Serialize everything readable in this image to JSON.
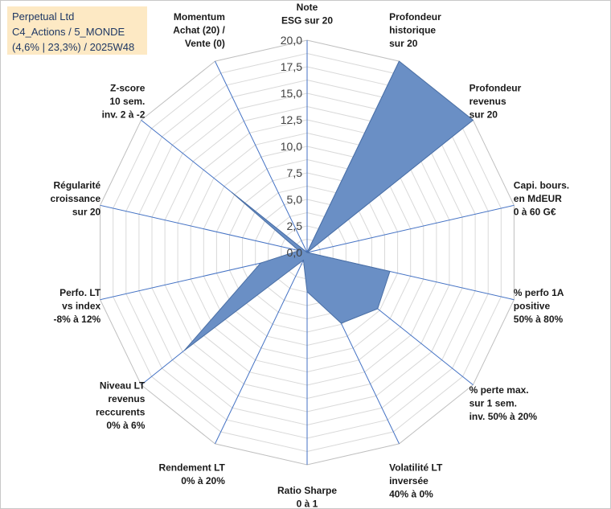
{
  "header": {
    "lines": [
      "Perpetual Ltd",
      "C4_Actions / 5_MONDE",
      "(4,6% | 23,3%) / 2025W48"
    ]
  },
  "colors": {
    "fill": "#6a8fc5",
    "stroke": "#4a6fa5",
    "radial": "#4472c4",
    "grid": "#d9d9d9",
    "header_bg": "#fde9c4",
    "header_text": "#1f3864"
  },
  "chart_data": {
    "type": "radar",
    "rmin": 0,
    "rmax": 20,
    "ticks": [
      "0,0",
      "2,5",
      "5,0",
      "7,5",
      "10,0",
      "12,5",
      "15,0",
      "17,5",
      "20,0"
    ],
    "axes": [
      {
        "label": [
          "Note",
          "ESG sur 20"
        ],
        "value": 0
      },
      {
        "label": [
          "Profondeur",
          "historique",
          "sur 20"
        ],
        "value": 20
      },
      {
        "label": [
          "Profondeur",
          "revenus",
          "sur 20"
        ],
        "value": 20
      },
      {
        "label": [
          "Capi. bours.",
          "en MdEUR",
          "0 à 60 G€"
        ],
        "value": 0
      },
      {
        "label": [
          "% perfo 1A",
          "positive",
          "50% à 80%"
        ],
        "value": 8
      },
      {
        "label": [
          "% perte max.",
          "sur 1 sem.",
          "inv. 50% à 20%"
        ],
        "value": 8.5
      },
      {
        "label": [
          "Volatilité LT",
          "inversée",
          "40% à 0%"
        ],
        "value": 7.4
      },
      {
        "label": [
          "Ratio Sharpe",
          "0 à 1"
        ],
        "value": 3.7
      },
      {
        "label": [
          "Rendement LT",
          "0% à 20%"
        ],
        "value": 0.8
      },
      {
        "label": [
          "Niveau LT",
          "revenus",
          "reccurents",
          "0% à 6%"
        ],
        "value": 14.8
      },
      {
        "label": [
          "Perfo. LT",
          "vs index",
          "-8% à 12%"
        ],
        "value": 4.5
      },
      {
        "label": [
          "Régularité",
          "croissance",
          "sur 20"
        ],
        "value": 0.8
      },
      {
        "label": [
          "Z-score",
          "10 sem.",
          "inv. 2 à -2"
        ],
        "value": 9.1
      },
      {
        "label": [
          "Momentum",
          "Achat (20) /",
          "Vente (0)"
        ],
        "value": 0
      }
    ]
  }
}
